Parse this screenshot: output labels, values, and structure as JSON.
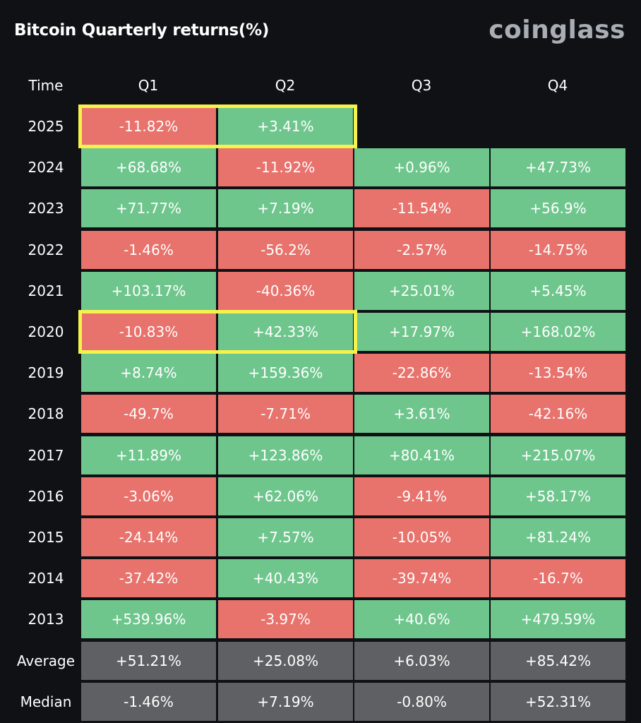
{
  "header": {
    "title": "Bitcoin Quarterly returns(%)",
    "logo": "coinglass"
  },
  "colors": {
    "positive": "#6fc68d",
    "negative": "#e8726c",
    "stat": "#5f6063",
    "highlight": "#f6f24c",
    "background": "#0f1115"
  },
  "chart_data": {
    "type": "table",
    "title": "Bitcoin Quarterly returns(%)",
    "columns": [
      "Time",
      "Q1",
      "Q2",
      "Q3",
      "Q4"
    ],
    "rows": [
      {
        "label": "2025",
        "values": [
          "-11.82%",
          "+3.41%",
          "",
          ""
        ]
      },
      {
        "label": "2024",
        "values": [
          "+68.68%",
          "-11.92%",
          "+0.96%",
          "+47.73%"
        ]
      },
      {
        "label": "2023",
        "values": [
          "+71.77%",
          "+7.19%",
          "-11.54%",
          "+56.9%"
        ]
      },
      {
        "label": "2022",
        "values": [
          "-1.46%",
          "-56.2%",
          "-2.57%",
          "-14.75%"
        ]
      },
      {
        "label": "2021",
        "values": [
          "+103.17%",
          "-40.36%",
          "+25.01%",
          "+5.45%"
        ]
      },
      {
        "label": "2020",
        "values": [
          "-10.83%",
          "+42.33%",
          "+17.97%",
          "+168.02%"
        ]
      },
      {
        "label": "2019",
        "values": [
          "+8.74%",
          "+159.36%",
          "-22.86%",
          "-13.54%"
        ]
      },
      {
        "label": "2018",
        "values": [
          "-49.7%",
          "-7.71%",
          "+3.61%",
          "-42.16%"
        ]
      },
      {
        "label": "2017",
        "values": [
          "+11.89%",
          "+123.86%",
          "+80.41%",
          "+215.07%"
        ]
      },
      {
        "label": "2016",
        "values": [
          "-3.06%",
          "+62.06%",
          "-9.41%",
          "+58.17%"
        ]
      },
      {
        "label": "2015",
        "values": [
          "-24.14%",
          "+7.57%",
          "-10.05%",
          "+81.24%"
        ]
      },
      {
        "label": "2014",
        "values": [
          "-37.42%",
          "+40.43%",
          "-39.74%",
          "-16.7%"
        ]
      },
      {
        "label": "2013",
        "values": [
          "+539.96%",
          "-3.97%",
          "+40.6%",
          "+479.59%"
        ]
      },
      {
        "label": "Average",
        "values": [
          "+51.21%",
          "+25.08%",
          "+6.03%",
          "+85.42%"
        ],
        "stat": true
      },
      {
        "label": "Median",
        "values": [
          "-1.46%",
          "+7.19%",
          "-0.80%",
          "+52.31%"
        ],
        "stat": true
      }
    ],
    "highlights": [
      {
        "row": "2025",
        "quarters": [
          "Q1",
          "Q2"
        ]
      },
      {
        "row": "2020",
        "quarters": [
          "Q1",
          "Q2"
        ]
      }
    ]
  }
}
